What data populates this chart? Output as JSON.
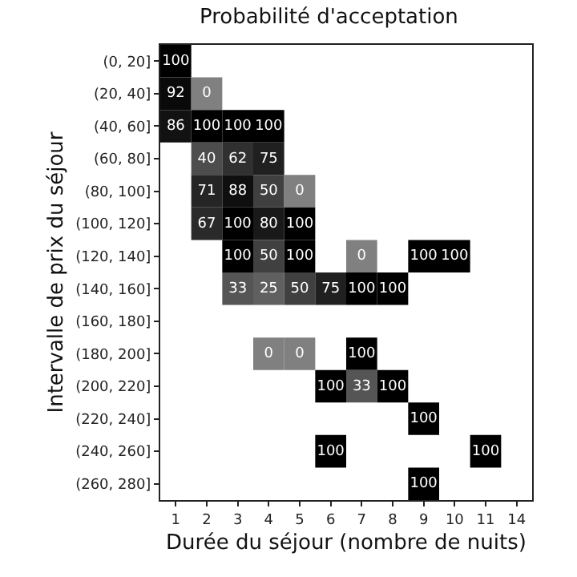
{
  "chart_data": {
    "type": "heatmap",
    "title": "Probabilité d'acceptation",
    "xlabel": "Durée du séjour (nombre de nuits)",
    "ylabel": "Intervalle de prix du séjour",
    "categories": [
      "1",
      "2",
      "3",
      "4",
      "5",
      "6",
      "7",
      "8",
      "9",
      "10",
      "11",
      "14"
    ],
    "y_categories": [
      "(0, 20]",
      "(20, 40]",
      "(40, 60]",
      "(60, 80]",
      "(80, 100]",
      "(100, 120]",
      "(120, 140]",
      "(140, 160]",
      "(160, 180]",
      "(180, 200]",
      "(200, 220]",
      "(220, 240]",
      "(240, 260]",
      "(260, 280]"
    ],
    "cells": [
      [
        100,
        null,
        null,
        null,
        null,
        null,
        null,
        null,
        null,
        null,
        null,
        null
      ],
      [
        92,
        0,
        null,
        null,
        null,
        null,
        null,
        null,
        null,
        null,
        null,
        null
      ],
      [
        86,
        100,
        100,
        100,
        null,
        null,
        null,
        null,
        null,
        null,
        null,
        null
      ],
      [
        null,
        40,
        62,
        75,
        null,
        null,
        null,
        null,
        null,
        null,
        null,
        null
      ],
      [
        null,
        71,
        88,
        50,
        0,
        null,
        null,
        null,
        null,
        null,
        null,
        null
      ],
      [
        null,
        67,
        100,
        80,
        100,
        null,
        null,
        null,
        null,
        null,
        null,
        null
      ],
      [
        null,
        null,
        100,
        50,
        100,
        null,
        0,
        null,
        100,
        100,
        null,
        null
      ],
      [
        null,
        null,
        33,
        25,
        50,
        75,
        100,
        100,
        null,
        null,
        null,
        null
      ],
      [
        null,
        null,
        null,
        null,
        null,
        null,
        null,
        null,
        null,
        null,
        null,
        null
      ],
      [
        null,
        null,
        null,
        0,
        0,
        null,
        100,
        null,
        null,
        null,
        null,
        null
      ],
      [
        null,
        null,
        null,
        null,
        null,
        100,
        33,
        100,
        null,
        null,
        null,
        null
      ],
      [
        null,
        null,
        null,
        null,
        null,
        null,
        null,
        null,
        100,
        null,
        null,
        null
      ],
      [
        null,
        null,
        null,
        null,
        null,
        100,
        null,
        null,
        null,
        null,
        100,
        null
      ],
      [
        null,
        null,
        null,
        null,
        null,
        null,
        null,
        null,
        100,
        null,
        null,
        null
      ]
    ],
    "data_labels": true
  }
}
